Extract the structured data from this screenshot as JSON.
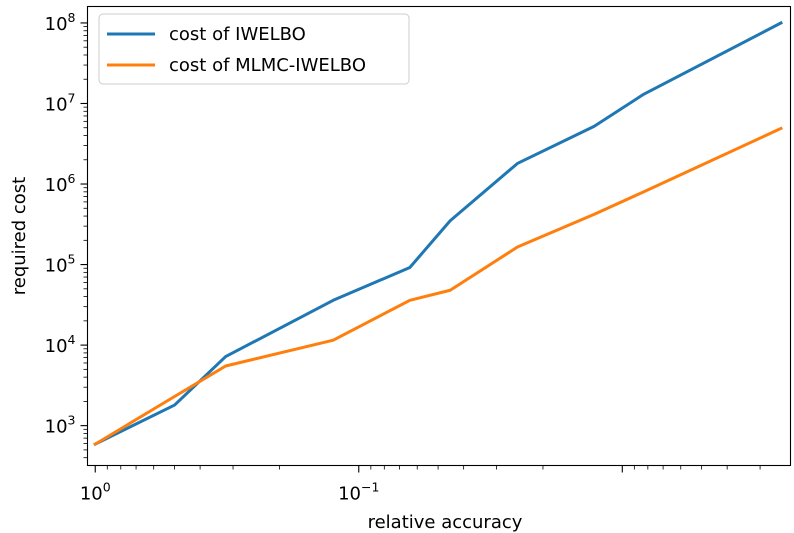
{
  "chart_data": {
    "type": "line",
    "title": "",
    "xlabel": "relative accuracy",
    "ylabel": "required cost",
    "x_scale": "log",
    "y_scale": "log",
    "x_inverted": true,
    "xlim": [
      1.07,
      0.0023
    ],
    "ylim": [
      320,
      160000000
    ],
    "grid": false,
    "legend_position": "top-left",
    "x_ticks": [
      {
        "value": 1,
        "base": "10",
        "exp": "0"
      },
      {
        "value": 0.1,
        "base": "10",
        "exp": "−1"
      }
    ],
    "y_ticks": [
      {
        "value": 1000,
        "base": "10",
        "exp": "3"
      },
      {
        "value": 10000,
        "base": "10",
        "exp": "4"
      },
      {
        "value": 100000,
        "base": "10",
        "exp": "5"
      },
      {
        "value": 1000000,
        "base": "10",
        "exp": "6"
      },
      {
        "value": 10000000,
        "base": "10",
        "exp": "7"
      },
      {
        "value": 100000000,
        "base": "10",
        "exp": "8"
      }
    ],
    "series": [
      {
        "name": "cost of IWELBO",
        "color": "#1f77b4",
        "x": [
          1.0,
          0.5,
          0.32,
          0.125,
          0.064,
          0.045,
          0.025,
          0.0128,
          0.0083,
          0.0025
        ],
        "y": [
          590,
          1800,
          7200,
          36000,
          92000,
          350000,
          1800000,
          5200000,
          13000000,
          100000000
        ]
      },
      {
        "name": "cost of MLMC-IWELBO",
        "color": "#ff7f0e",
        "x": [
          1.0,
          0.5,
          0.32,
          0.125,
          0.064,
          0.045,
          0.025,
          0.0128,
          0.0083,
          0.0025
        ],
        "y": [
          590,
          2300,
          5500,
          11500,
          36000,
          48000,
          165000,
          420000,
          800000,
          4900000
        ]
      }
    ]
  }
}
